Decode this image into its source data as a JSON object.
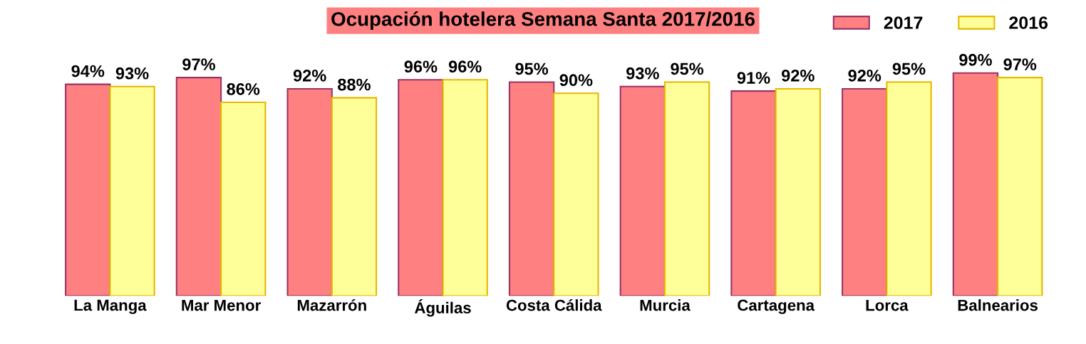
{
  "chart_data": {
    "type": "bar",
    "title": "Ocupación hotelera Semana Santa 2017/2016",
    "categories": [
      "La Manga",
      "Mar Menor",
      "Mazarrón",
      "Águilas",
      "Costa Cálida",
      "Murcia",
      "Cartagena",
      "Lorca",
      "Balnearios"
    ],
    "series": [
      {
        "name": "2017",
        "color": "#ff8080",
        "values": [
          94,
          97,
          92,
          96,
          95,
          93,
          91,
          92,
          99
        ],
        "value_labels": [
          "94%",
          "97%",
          "92%",
          "96%",
          "95%",
          "93%",
          "91%",
          "92%",
          "99%"
        ]
      },
      {
        "name": "2016",
        "color": "#ffff99",
        "values": [
          93,
          86,
          88,
          96,
          90,
          95,
          92,
          95,
          97
        ],
        "value_labels": [
          "93%",
          "86%",
          "88%",
          "96%",
          "90%",
          "95%",
          "92%",
          "95%",
          "97%"
        ]
      }
    ],
    "legend": "top right",
    "grid": false,
    "tick_labels": "x"
  }
}
